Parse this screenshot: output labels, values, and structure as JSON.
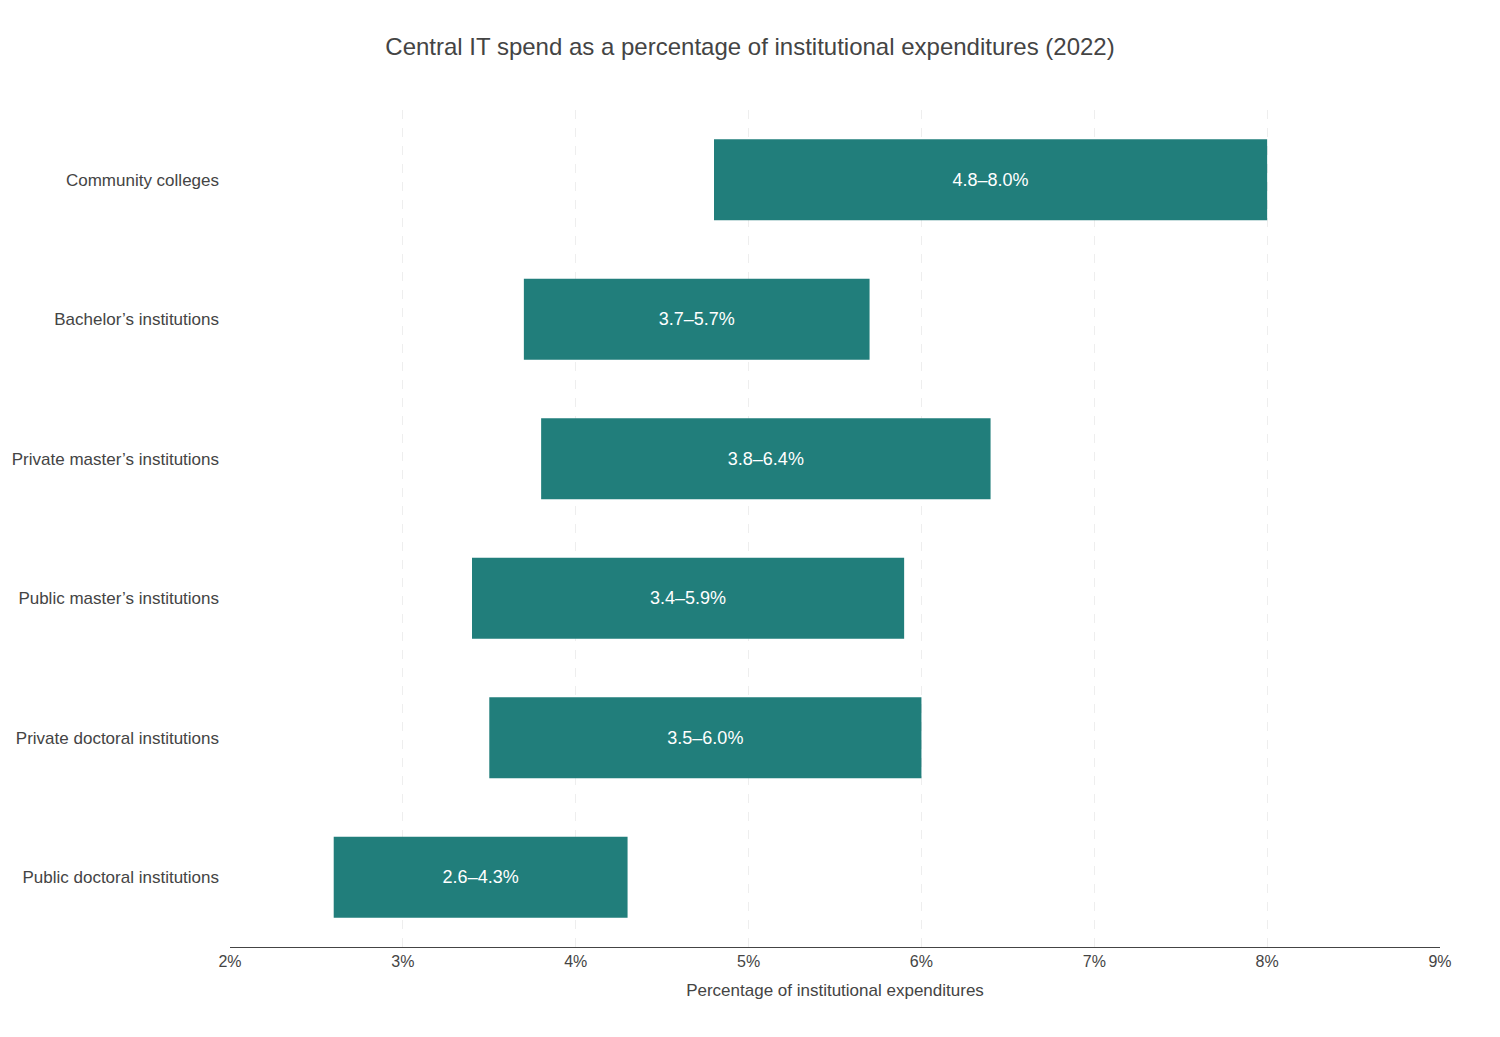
{
  "chart_data": {
    "type": "bar",
    "orientation": "horizontal",
    "title": "Central IT spend as a percentage of institutional expenditures (2022)",
    "categories": [
      "Community colleges",
      "Bachelor’s institutions",
      "Private master’s institutions",
      "Public master’s institutions",
      "Private doctoral institutions",
      "Public doctoral institutions"
    ],
    "values": [
      [
        4.8,
        8.0
      ],
      [
        3.7,
        5.7
      ],
      [
        3.8,
        6.4
      ],
      [
        3.4,
        5.9
      ],
      [
        3.5,
        6.0
      ],
      [
        2.6,
        4.3
      ]
    ],
    "value_labels": [
      "4.8–8.0%",
      "3.7–5.7%",
      "3.8–6.4%",
      "3.4–5.9%",
      "3.5–6.0%",
      "2.6–4.3%"
    ],
    "data_labels": true,
    "color": "#217E7B",
    "xlabel": "Percentage of institutional expenditures",
    "xlim": [
      2,
      9
    ],
    "xticks": [
      {
        "value": 2,
        "label": "2%"
      },
      {
        "value": 3,
        "label": "3%"
      },
      {
        "value": 4,
        "label": "4%"
      },
      {
        "value": 5,
        "label": "5%"
      },
      {
        "value": 6,
        "label": "6%"
      },
      {
        "value": 7,
        "label": "7%"
      },
      {
        "value": 8,
        "label": "8%"
      },
      {
        "value": 9,
        "label": "9%"
      }
    ],
    "grid": true
  }
}
